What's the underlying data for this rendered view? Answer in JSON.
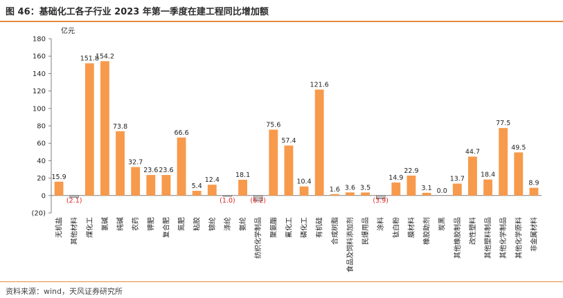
{
  "title": "图 46：基础化工各子行业 2023 年第一季度在建工程同比增加额",
  "source": "资料来源：wind，天风证券研究所",
  "chart_data": {
    "type": "bar",
    "title": "图 46：基础化工各子行业 2023 年第一季度在建工程同比增加额",
    "ylabel": "亿元",
    "xlabel": "",
    "ylim": [
      -20,
      180
    ],
    "yticks": [
      180,
      160,
      140,
      120,
      100,
      80,
      60,
      40,
      20,
      0,
      -20
    ],
    "ytick_labels": [
      "180",
      "160",
      "140",
      "120",
      "100",
      "80",
      "60",
      "40",
      "20",
      "0",
      "(20)"
    ],
    "categories": [
      "无机盐",
      "其他材料",
      "煤化工",
      "氯碱",
      "纯碱",
      "农药",
      "钾肥",
      "复合肥",
      "氮肥",
      "粘胶",
      "锦纶",
      "涤纶",
      "氨纶",
      "纺织化学制品",
      "聚氨酯",
      "氟化工",
      "磷化工",
      "有机硅",
      "合成树脂",
      "食品及饲料添加剂",
      "民爆用品",
      "涂料",
      "钛白粉",
      "膜材料",
      "橡胶助剂",
      "炭黑",
      "其他橡胶制品",
      "改性塑料",
      "其他塑料制品",
      "其他化学制品",
      "其他化学原料",
      "非金属材料"
    ],
    "values": [
      15.9,
      -2.1,
      151.8,
      154.2,
      73.8,
      32.7,
      23.6,
      23.6,
      66.6,
      5.4,
      12.4,
      -1.0,
      18.1,
      -6.2,
      75.6,
      57.4,
      10.4,
      121.6,
      1.6,
      3.6,
      3.5,
      -3.9,
      14.9,
      22.9,
      3.1,
      0.0,
      13.7,
      44.7,
      18.4,
      77.5,
      49.5,
      8.9
    ],
    "value_labels": [
      "15.9",
      "(2.1)",
      "151.8",
      "154.2",
      "73.8",
      "32.7",
      "23.6",
      "23.6",
      "66.6",
      "5.4",
      "12.4",
      "(1.0)",
      "18.1",
      "(6.2)",
      "75.6",
      "57.4",
      "10.4",
      "121.6",
      "1.6",
      "3.6",
      "3.5",
      "(3.9)",
      "14.9",
      "22.9",
      "3.1",
      "0.0",
      "13.7",
      "44.7",
      "18.4",
      "77.5",
      "49.5",
      "8.9"
    ],
    "colors": {
      "positive": "#f79a4c",
      "negative": "#bfbfbf",
      "negative_label": "#e02424",
      "axis": "#7f7f7f"
    }
  }
}
